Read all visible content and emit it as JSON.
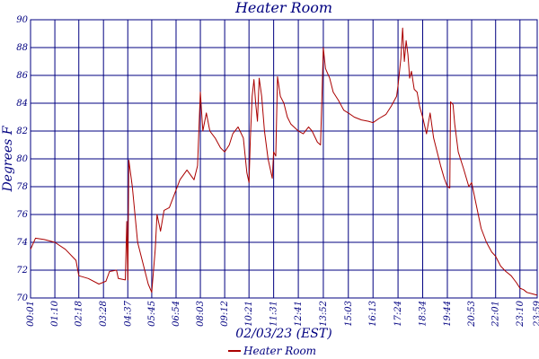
{
  "chart_data": {
    "type": "line",
    "title": "Heater Room",
    "xlabel": "02/03/23 (EST)",
    "ylabel": "Degrees F",
    "ylim": [
      70,
      90
    ],
    "yticks": [
      70,
      72,
      74,
      76,
      78,
      80,
      82,
      84,
      86,
      88,
      90
    ],
    "xlim": [
      "00:01",
      "23:59"
    ],
    "xticks": [
      "00:01",
      "01:10",
      "02:18",
      "03:28",
      "04:37",
      "05:45",
      "06:54",
      "08:03",
      "09:12",
      "10:21",
      "11:31",
      "12:41",
      "13:52",
      "15:03",
      "16:13",
      "17:24",
      "18:34",
      "19:44",
      "20:53",
      "22:01",
      "23:10",
      "23:59"
    ],
    "grid": true,
    "legend": "bottom-center",
    "colors": {
      "series": "#aa0000",
      "grid": "#000080",
      "text": "#000080"
    },
    "series": [
      {
        "name": "Heater Room",
        "points": [
          [
            "00:01",
            73.5
          ],
          [
            "00:15",
            74.3
          ],
          [
            "00:40",
            74.2
          ],
          [
            "01:10",
            74.0
          ],
          [
            "01:40",
            73.5
          ],
          [
            "02:10",
            72.7
          ],
          [
            "02:18",
            71.6
          ],
          [
            "02:45",
            71.4
          ],
          [
            "03:15",
            71.0
          ],
          [
            "03:35",
            71.2
          ],
          [
            "03:45",
            71.9
          ],
          [
            "04:05",
            72.0
          ],
          [
            "04:10",
            71.4
          ],
          [
            "04:30",
            71.3
          ],
          [
            "04:34",
            75.5
          ],
          [
            "04:37",
            71.3
          ],
          [
            "04:40",
            79.9
          ],
          [
            "04:50",
            78.0
          ],
          [
            "05:05",
            74.0
          ],
          [
            "05:20",
            72.5
          ],
          [
            "05:35",
            71.0
          ],
          [
            "05:45",
            70.4
          ],
          [
            "05:55",
            73.5
          ],
          [
            "06:00",
            76.0
          ],
          [
            "06:10",
            74.8
          ],
          [
            "06:20",
            76.3
          ],
          [
            "06:35",
            76.5
          ],
          [
            "06:50",
            77.5
          ],
          [
            "07:05",
            78.5
          ],
          [
            "07:25",
            79.2
          ],
          [
            "07:45",
            78.5
          ],
          [
            "07:55",
            79.5
          ],
          [
            "08:03",
            84.8
          ],
          [
            "08:10",
            82.0
          ],
          [
            "08:20",
            83.3
          ],
          [
            "08:30",
            82.0
          ],
          [
            "08:45",
            81.5
          ],
          [
            "09:00",
            80.8
          ],
          [
            "09:12",
            80.5
          ],
          [
            "09:25",
            81.0
          ],
          [
            "09:35",
            81.8
          ],
          [
            "09:50",
            82.3
          ],
          [
            "10:05",
            81.5
          ],
          [
            "10:15",
            79.0
          ],
          [
            "10:21",
            78.3
          ],
          [
            "10:25",
            81.5
          ],
          [
            "10:30",
            84.5
          ],
          [
            "10:35",
            85.7
          ],
          [
            "10:40",
            84.0
          ],
          [
            "10:45",
            82.7
          ],
          [
            "10:50",
            85.8
          ],
          [
            "10:57",
            84.5
          ],
          [
            "11:05",
            82.0
          ],
          [
            "11:15",
            80.0
          ],
          [
            "11:27",
            78.6
          ],
          [
            "11:31",
            80.5
          ],
          [
            "11:37",
            80.2
          ],
          [
            "11:42",
            85.9
          ],
          [
            "11:50",
            84.5
          ],
          [
            "12:00",
            84.0
          ],
          [
            "12:10",
            83.0
          ],
          [
            "12:20",
            82.5
          ],
          [
            "12:41",
            82.0
          ],
          [
            "12:55",
            81.8
          ],
          [
            "13:10",
            82.3
          ],
          [
            "13:20",
            82.0
          ],
          [
            "13:35",
            81.2
          ],
          [
            "13:44",
            81.0
          ],
          [
            "13:48",
            84.5
          ],
          [
            "13:52",
            88.0
          ],
          [
            "13:58",
            86.5
          ],
          [
            "14:10",
            85.8
          ],
          [
            "14:20",
            84.8
          ],
          [
            "14:35",
            84.2
          ],
          [
            "14:50",
            83.5
          ],
          [
            "15:03",
            83.3
          ],
          [
            "15:20",
            83.0
          ],
          [
            "15:40",
            82.8
          ],
          [
            "16:00",
            82.7
          ],
          [
            "16:13",
            82.6
          ],
          [
            "16:30",
            82.9
          ],
          [
            "16:50",
            83.2
          ],
          [
            "17:05",
            83.8
          ],
          [
            "17:20",
            84.5
          ],
          [
            "17:24",
            85.3
          ],
          [
            "17:32",
            87.2
          ],
          [
            "17:37",
            89.4
          ],
          [
            "17:42",
            87.0
          ],
          [
            "17:47",
            88.5
          ],
          [
            "17:52",
            87.5
          ],
          [
            "17:57",
            85.8
          ],
          [
            "18:02",
            86.3
          ],
          [
            "18:10",
            85.0
          ],
          [
            "18:18",
            84.8
          ],
          [
            "18:25",
            83.8
          ],
          [
            "18:34",
            83.0
          ],
          [
            "18:45",
            81.8
          ],
          [
            "18:55",
            83.3
          ],
          [
            "19:05",
            81.5
          ],
          [
            "19:15",
            80.5
          ],
          [
            "19:25",
            79.5
          ],
          [
            "19:35",
            78.6
          ],
          [
            "19:44",
            78.0
          ],
          [
            "19:51",
            77.9
          ],
          [
            "19:53",
            84.1
          ],
          [
            "20:00",
            83.9
          ],
          [
            "20:05",
            82.5
          ],
          [
            "20:15",
            80.5
          ],
          [
            "20:30",
            79.3
          ],
          [
            "20:45",
            78.0
          ],
          [
            "20:53",
            78.3
          ],
          [
            "21:05",
            76.8
          ],
          [
            "21:20",
            75.0
          ],
          [
            "21:35",
            74.0
          ],
          [
            "21:50",
            73.3
          ],
          [
            "22:01",
            73.0
          ],
          [
            "22:15",
            72.3
          ],
          [
            "22:30",
            71.9
          ],
          [
            "22:45",
            71.6
          ],
          [
            "23:00",
            71.1
          ],
          [
            "23:10",
            70.7
          ],
          [
            "23:20",
            70.6
          ],
          [
            "23:30",
            70.4
          ],
          [
            "23:45",
            70.3
          ],
          [
            "23:59",
            70.2
          ]
        ]
      }
    ]
  }
}
